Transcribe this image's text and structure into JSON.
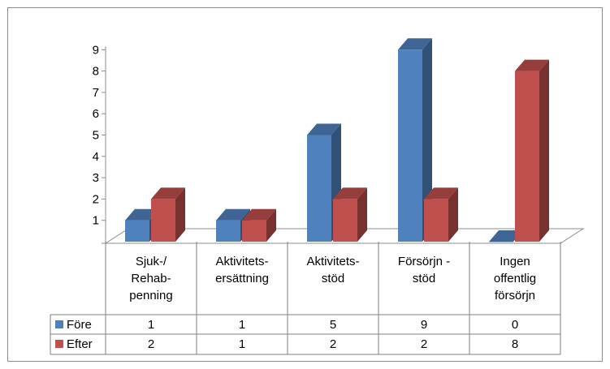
{
  "chart_data": {
    "type": "bar",
    "style": "3d-clustered-column-with-data-table",
    "categories": [
      [
        "Sjuk-/",
        "Rehab-",
        "penning"
      ],
      [
        "Aktivitets-",
        "ersättning"
      ],
      [
        "Aktivitets-",
        "stöd"
      ],
      [
        "Försörjn -",
        "stöd"
      ],
      [
        "Ingen",
        "offentlig",
        "försörjn"
      ]
    ],
    "series": [
      {
        "name": "Före",
        "values": [
          1,
          1,
          5,
          9,
          0
        ],
        "color": "#4f81bd"
      },
      {
        "name": "Efter",
        "values": [
          2,
          1,
          2,
          2,
          8
        ],
        "color": "#c0504d"
      }
    ],
    "yticks": [
      1,
      2,
      3,
      4,
      5,
      6,
      7,
      8,
      9
    ],
    "ylim": [
      0,
      9
    ],
    "grid": false,
    "legend": "data-table"
  }
}
